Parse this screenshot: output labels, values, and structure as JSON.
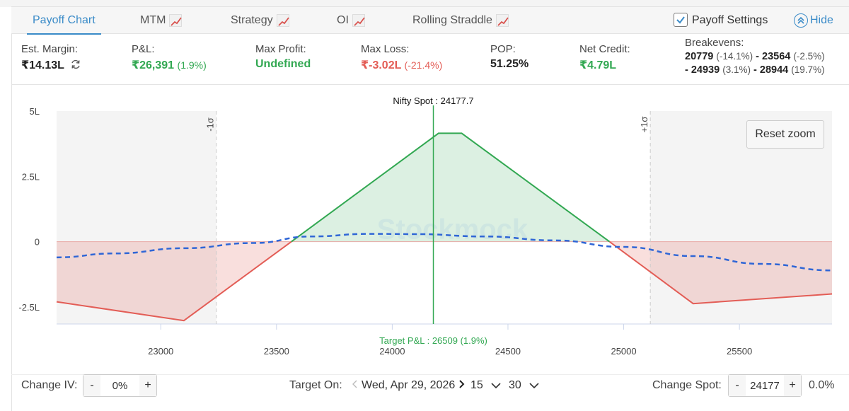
{
  "tabs": [
    {
      "label": "Payoff Chart",
      "active": true
    },
    {
      "label": "MTM",
      "icon": "trend-chart-icon"
    },
    {
      "label": "Strategy",
      "icon": "trend-chart-icon"
    },
    {
      "label": "OI",
      "icon": "trend-chart-icon"
    },
    {
      "label": "Rolling Straddle",
      "icon": "trend-chart-icon"
    }
  ],
  "settings": {
    "label": "Payoff Settings",
    "checked": true,
    "hide_label": "Hide"
  },
  "stats": {
    "margin": {
      "label": "Est. Margin:",
      "value": "₹14.13L"
    },
    "pnl": {
      "label": "P&L:",
      "value": "₹26,391",
      "pct": "(1.9%)"
    },
    "max_profit": {
      "label": "Max Profit:",
      "value": "Undefined"
    },
    "max_loss": {
      "label": "Max Loss:",
      "value": "₹-3.02L",
      "pct": "(-21.4%)"
    },
    "pop": {
      "label": "POP:",
      "value": "51.25%"
    },
    "net_credit": {
      "label": "Net Credit:",
      "value": "₹4.79L"
    },
    "breakevens": {
      "label": "Breakevens:",
      "items": [
        {
          "value": "20779",
          "pct": "(-14.1%)"
        },
        {
          "value": "23564",
          "pct": "(-2.5%)"
        },
        {
          "value": "24939",
          "pct": "(3.1%)"
        },
        {
          "value": "28944",
          "pct": "(19.7%)"
        }
      ]
    }
  },
  "chart": {
    "spot_label": "Nifty Spot : 24177.7",
    "target_label": "Target P&L : 26509 (1.9%)",
    "minus_sigma": "-1σ",
    "plus_sigma": "+1σ",
    "reset_label": "Reset zoom",
    "watermark": "Stockmock"
  },
  "chart_data": {
    "type": "line",
    "x_ticks": [
      23000,
      23500,
      24000,
      24500,
      25000,
      25500
    ],
    "y_ticks": [
      {
        "v": 500000,
        "label": "5L"
      },
      {
        "v": 250000,
        "label": "2.5L"
      },
      {
        "v": 0,
        "label": "0"
      },
      {
        "v": -250000,
        "label": "-2.5L"
      }
    ],
    "xlim": [
      22550,
      25900
    ],
    "ylim": [
      -315000,
      500000
    ],
    "spot": 24177.7,
    "sigma_minus": 23240,
    "sigma_plus": 25115,
    "series": [
      {
        "style": "expiry",
        "points": [
          [
            22550,
            -230000
          ],
          [
            23100,
            -302000
          ],
          [
            23564,
            0
          ],
          [
            24200,
            415000
          ],
          [
            24300,
            415000
          ],
          [
            24939,
            0
          ],
          [
            25300,
            -237000
          ],
          [
            25900,
            -200000
          ]
        ]
      },
      {
        "style": "target",
        "points": [
          [
            22550,
            -60000
          ],
          [
            22800,
            -45000
          ],
          [
            23100,
            -25000
          ],
          [
            23400,
            -5000
          ],
          [
            23650,
            20000
          ],
          [
            23900,
            30000
          ],
          [
            24100,
            29000
          ],
          [
            24400,
            20000
          ],
          [
            24700,
            5000
          ],
          [
            25000,
            -20000
          ],
          [
            25300,
            -55000
          ],
          [
            25600,
            -85000
          ],
          [
            25900,
            -110000
          ]
        ]
      }
    ]
  },
  "bottom": {
    "change_iv_label": "Change IV:",
    "iv_value": "0%",
    "target_on_label": "Target On:",
    "target_date": "Wed, Apr 29, 2026",
    "hour": "15",
    "minute": "30",
    "change_spot_label": "Change Spot:",
    "spot_value": "24177",
    "spot_pct": "0.0%",
    "minus": "-",
    "plus": "+"
  },
  "colors": {
    "accent": "#3a8bc8",
    "profit": "#32a852",
    "loss": "#e35d56",
    "target_line": "#2f66d6"
  }
}
